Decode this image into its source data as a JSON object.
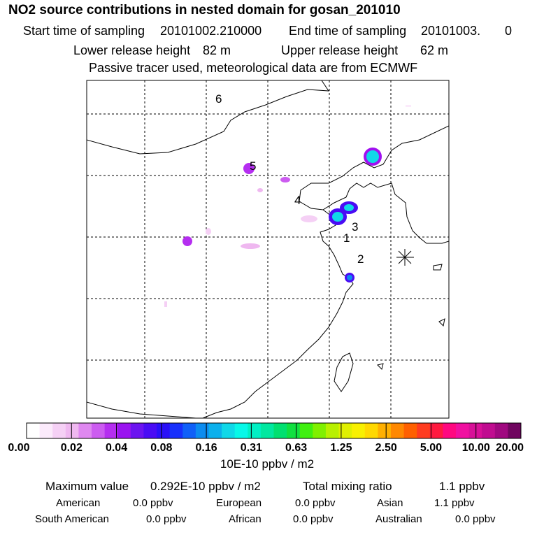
{
  "header": {
    "title": "NO2 source contributions in nested domain for gosan_201010",
    "start_label": "Start time of sampling",
    "start_value": "20101002.210000",
    "end_label": "End time of sampling",
    "end_value": "20101003.",
    "end_extra": "0",
    "lower_label": "Lower release height",
    "lower_value": "82 m",
    "upper_label": "Upper release height",
    "upper_value": "62 m",
    "note": "Passive tracer used, meteorological data are from ECMWF"
  },
  "chart_data": {
    "type": "heatmap",
    "title": "NO2 source contributions in nested domain for gosan_201010",
    "colorbar": {
      "ticks": [
        "0.00",
        "0.02",
        "0.04",
        "0.08",
        "0.16",
        "0.31",
        "0.63",
        "1.25",
        "2.50",
        "5.00",
        "10.00",
        "20.00"
      ],
      "colors": [
        "#ffffff",
        "#fbeafb",
        "#f5d0f5",
        "#efb8f0",
        "#df88f0",
        "#cc5cf0",
        "#b52ef0",
        "#9a14f0",
        "#6c14f0",
        "#4a0cf4",
        "#2a10f8",
        "#1830fc",
        "#1060f8",
        "#0c8cf0",
        "#0cb0ec",
        "#10d8e8",
        "#08f8e8",
        "#00f0c4",
        "#00e8a0",
        "#00e070",
        "#10e040",
        "#40f010",
        "#80f000",
        "#b8f000",
        "#e0f000",
        "#f8f000",
        "#ffd800",
        "#ffb000",
        "#ff8800",
        "#ff6000",
        "#ff3c20",
        "#ff1a40",
        "#ff0880",
        "#f010a0",
        "#d81098",
        "#c00c90",
        "#a00880",
        "#700660"
      ],
      "units": "10E-10 ppbv / m2"
    },
    "map_labels": [
      "1",
      "2",
      "3",
      "4",
      "5",
      "6"
    ]
  },
  "stats": {
    "max_label": "Maximum value",
    "max_value": "0.292E-10 ppbv / m2",
    "total_label": "Total mixing ratio",
    "total_value": "1.1 ppbv",
    "regions": [
      {
        "name": "American",
        "value": "0.0 ppbv"
      },
      {
        "name": "European",
        "value": "0.0 ppbv"
      },
      {
        "name": "Asian",
        "value": "1.1 ppbv"
      },
      {
        "name": "South American",
        "value": "0.0 ppbv"
      },
      {
        "name": "African",
        "value": "0.0 ppbv"
      },
      {
        "name": "Australian",
        "value": "0.0 ppbv"
      }
    ]
  }
}
